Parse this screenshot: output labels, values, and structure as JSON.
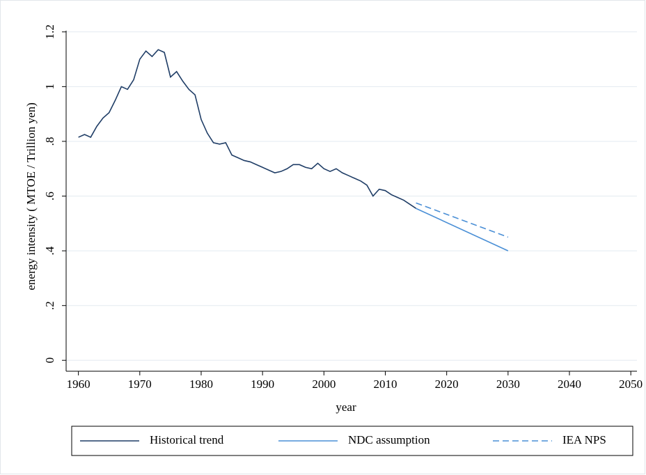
{
  "chart_data": {
    "type": "line",
    "x_label": "year",
    "y_label": "energy intensity ( MTOE / Trillion yen)",
    "xlim": [
      1958,
      2051
    ],
    "ylim": [
      -0.04,
      1.23
    ],
    "xticks": [
      1960,
      1970,
      1980,
      1990,
      2000,
      2010,
      2020,
      2030,
      2040,
      2050
    ],
    "yticks": [
      0,
      {
        "value": 0.2,
        "label": ".2"
      },
      {
        "value": 0.4,
        "label": ".4"
      },
      {
        "value": 0.6,
        "label": ".6"
      },
      {
        "value": 0.8,
        "label": ".8"
      },
      1,
      1.2
    ],
    "grid": true,
    "legend": "bottom",
    "series": [
      {
        "name": "Historical trend",
        "color": "#1f3d66",
        "style": "solid",
        "x": [
          1960,
          1961,
          1962,
          1963,
          1964,
          1965,
          1966,
          1967,
          1968,
          1969,
          1970,
          1971,
          1972,
          1973,
          1974,
          1975,
          1976,
          1977,
          1978,
          1979,
          1980,
          1981,
          1982,
          1983,
          1984,
          1985,
          1986,
          1987,
          1988,
          1989,
          1990,
          1991,
          1992,
          1993,
          1994,
          1995,
          1996,
          1997,
          1998,
          1999,
          2000,
          2001,
          2002,
          2003,
          2004,
          2005,
          2006,
          2007,
          2008,
          2009,
          2010,
          2011,
          2012,
          2013,
          2014,
          2015
        ],
        "values": [
          0.815,
          0.825,
          0.815,
          0.855,
          0.885,
          0.905,
          0.95,
          1.0,
          0.99,
          1.025,
          1.1,
          1.13,
          1.11,
          1.135,
          1.125,
          1.035,
          1.055,
          1.02,
          0.99,
          0.97,
          0.88,
          0.83,
          0.795,
          0.79,
          0.795,
          0.75,
          0.74,
          0.73,
          0.725,
          0.715,
          0.705,
          0.695,
          0.685,
          0.69,
          0.7,
          0.715,
          0.715,
          0.705,
          0.7,
          0.72,
          0.7,
          0.69,
          0.7,
          0.685,
          0.675,
          0.665,
          0.655,
          0.64,
          0.6,
          0.625,
          0.62,
          0.605,
          0.595,
          0.585,
          0.57,
          0.555
        ]
      },
      {
        "name": "NDC assumption",
        "color": "#4a8fd6",
        "style": "solid",
        "x": [
          2015,
          2030
        ],
        "values": [
          0.555,
          0.4
        ]
      },
      {
        "name": "IEA NPS",
        "color": "#4a8fd6",
        "style": "dashed",
        "x": [
          2015,
          2030
        ],
        "values": [
          0.575,
          0.45
        ]
      }
    ]
  }
}
